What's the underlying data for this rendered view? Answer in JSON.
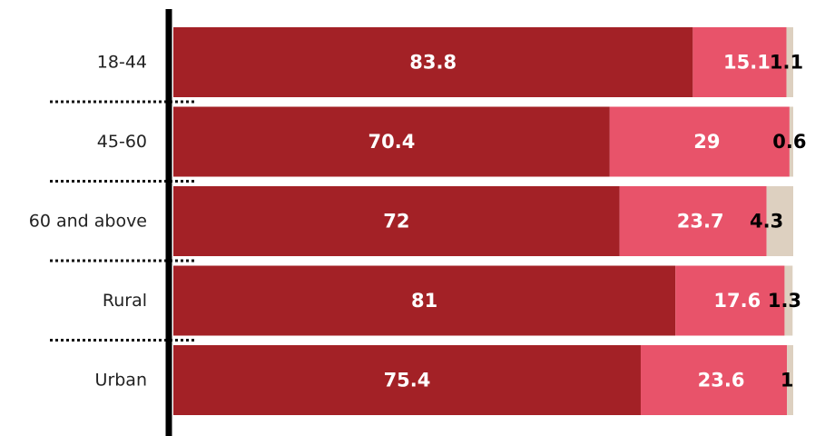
{
  "chart_data": {
    "type": "bar",
    "orientation": "horizontal",
    "stacked": true,
    "categories": [
      "18-44",
      "45-60",
      "60 and above",
      "Rural",
      "Urban"
    ],
    "series": [
      {
        "values": [
          83.8,
          70.4,
          72,
          81,
          75.4
        ],
        "color": "#a32126",
        "label_color": "#ffffff"
      },
      {
        "values": [
          15.1,
          29,
          23.7,
          17.6,
          23.6
        ],
        "color": "#e8536a",
        "label_color": "#ffffff"
      },
      {
        "values": [
          1.1,
          0.6,
          4.3,
          1.3,
          1
        ],
        "color": "#ddd0c0",
        "label_color": "#000000"
      }
    ],
    "value_labels": [
      [
        "83.8",
        "15.1",
        "1.1"
      ],
      [
        "70.4",
        "29",
        "0.6"
      ],
      [
        "72",
        "23.7",
        "4.3"
      ],
      [
        "81",
        "17.6",
        "1.3"
      ],
      [
        "75.4",
        "23.6",
        "1"
      ]
    ],
    "xlim": [
      0,
      100
    ],
    "title": "",
    "xlabel": "",
    "ylabel": "",
    "legend": "none",
    "grid": false,
    "separator_style": "dotted"
  }
}
